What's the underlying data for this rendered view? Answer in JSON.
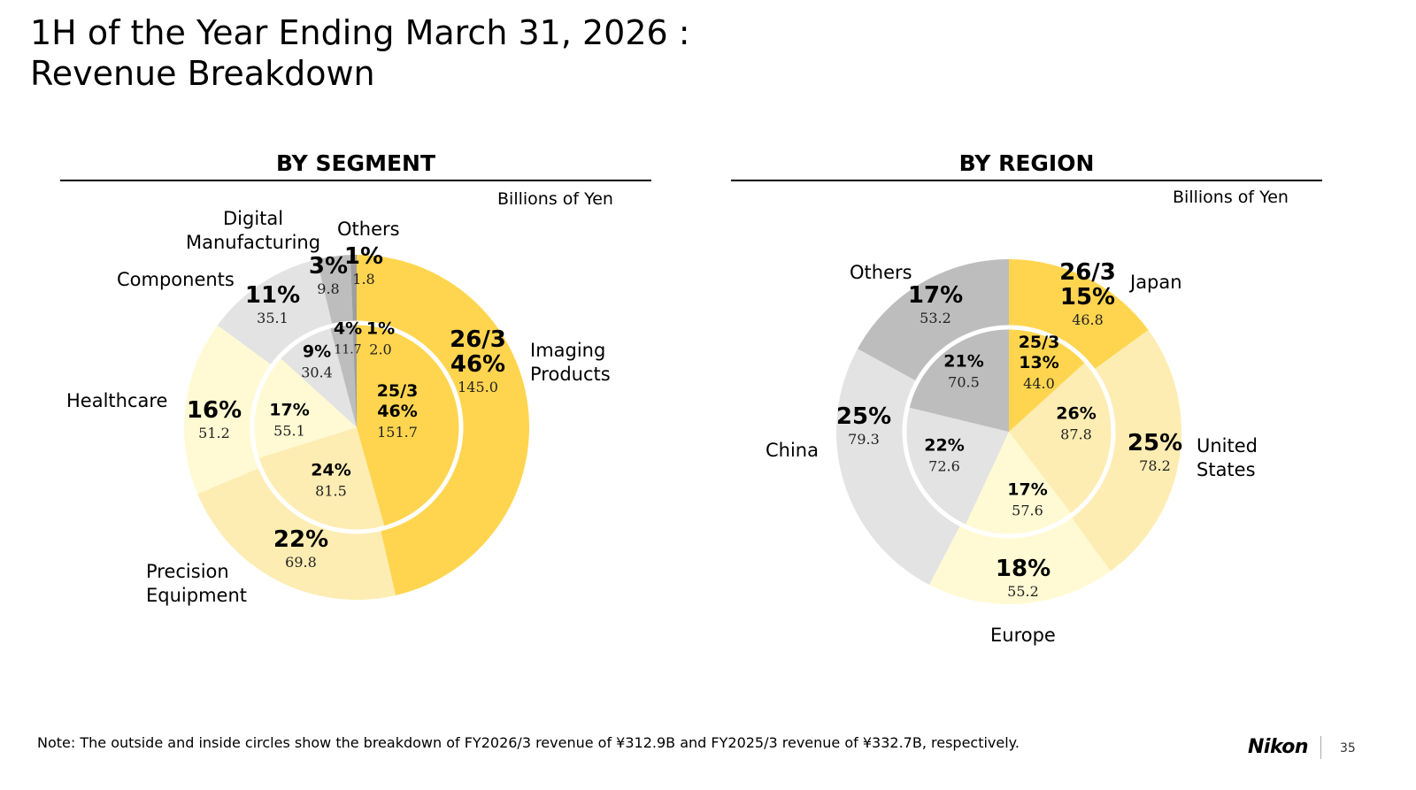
{
  "title_line1": "1H of the Year Ending March 31, 2026 :",
  "title_line2": "Revenue Breakdown",
  "note": "Note: The outside and inside circles show the breakdown of FY2026/3 revenue of ¥312.9B and FY2025/3 revenue of ¥332.7B, respectively.",
  "logo": "Nikon",
  "page_number": "35",
  "chart_data": [
    {
      "type": "pie",
      "title": "BY SEGMENT",
      "unit": "Billions of Yen",
      "outer_tag": "26/3",
      "inner_tag": "25/3",
      "categories": [
        "Imaging Products",
        "Precision Equipment",
        "Healthcare",
        "Components",
        "Digital Manufacturing",
        "Others"
      ],
      "labels": [
        [
          "Imaging",
          "Products"
        ],
        [
          "Precision",
          "Equipment"
        ],
        [
          "Healthcare"
        ],
        [
          "Components"
        ],
        [
          "Digital",
          "Manufacturing"
        ],
        [
          "Others"
        ]
      ],
      "colors": [
        "#FFD54F",
        "#FDEDB3",
        "#FFFAD4",
        "#E3E3E3",
        "#BDBDBD",
        "#9E9E9E"
      ],
      "series": [
        {
          "name": "FY2026/3",
          "values": [
            145.0,
            69.8,
            51.2,
            35.1,
            9.8,
            1.8
          ],
          "percent": [
            "46%",
            "22%",
            "16%",
            "11%",
            "3%",
            "1%"
          ]
        },
        {
          "name": "FY2025/3",
          "values": [
            151.7,
            81.5,
            55.1,
            30.4,
            11.7,
            2.0
          ],
          "percent": [
            "46%",
            "24%",
            "17%",
            "9%",
            "4%",
            "1%"
          ]
        }
      ]
    },
    {
      "type": "pie",
      "title": "BY REGION",
      "unit": "Billions of Yen",
      "outer_tag": "26/3",
      "inner_tag": "25/3",
      "categories": [
        "Japan",
        "United States",
        "Europe",
        "China",
        "Others"
      ],
      "labels": [
        [
          "Japan"
        ],
        [
          "United",
          "States"
        ],
        [
          "Europe"
        ],
        [
          "China"
        ],
        [
          "Others"
        ]
      ],
      "colors": [
        "#FFD54F",
        "#FDEDB3",
        "#FFFAD4",
        "#E3E3E3",
        "#BDBDBD"
      ],
      "series": [
        {
          "name": "FY2026/3",
          "values": [
            46.8,
            78.2,
            55.2,
            79.3,
            53.2
          ],
          "percent": [
            "15%",
            "25%",
            "18%",
            "25%",
            "17%"
          ]
        },
        {
          "name": "FY2025/3",
          "values": [
            44.0,
            87.8,
            57.6,
            72.6,
            70.5
          ],
          "percent": [
            "13%",
            "26%",
            "17%",
            "22%",
            "21%"
          ]
        }
      ]
    }
  ]
}
